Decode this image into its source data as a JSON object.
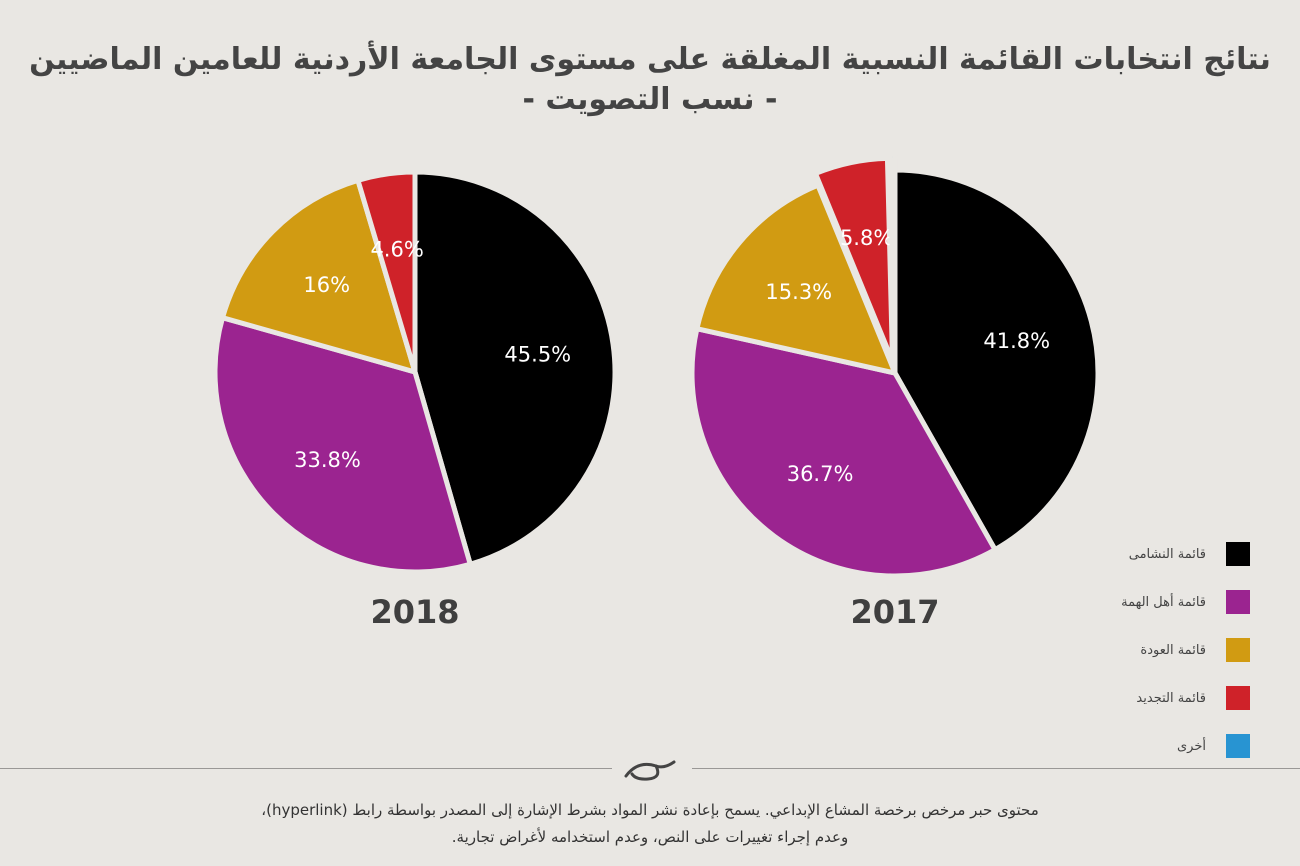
{
  "title": {
    "line1": "نتائج انتخابات القائمة النسبية المغلقة على مستوى الجامعة الأردنية للعامين الماضيين",
    "line2": "- نسب التصويت -"
  },
  "chart_data": [
    {
      "type": "pie",
      "title": "2018",
      "categories": [
        "قائمة النشامى",
        "قائمة أهل الهمة",
        "قائمة العودة",
        "قائمة التجديد"
      ],
      "values": [
        45.5,
        33.8,
        16,
        4.6
      ],
      "labels": [
        "45.5%",
        "33.8%",
        "16%",
        "4.6%"
      ],
      "colors": [
        "#000000",
        "#9b2490",
        "#d19b12",
        "#cf2229"
      ]
    },
    {
      "type": "pie",
      "title": "2017",
      "categories": [
        "قائمة النشامى",
        "قائمة أهل الهمة",
        "قائمة العودة",
        "قائمة التجديد",
        "أخرى"
      ],
      "values": [
        41.8,
        36.7,
        15.3,
        5.8,
        0.4
      ],
      "labels": [
        "41.8%",
        "36.7%",
        "15.3%",
        "5.8%",
        ""
      ],
      "colors": [
        "#000000",
        "#9b2490",
        "#d19b12",
        "#cf2229",
        "#2894d2"
      ]
    }
  ],
  "legend": [
    {
      "label": "قائمة النشامى",
      "color": "#000000"
    },
    {
      "label": "قائمة أهل الهمة",
      "color": "#9b2490"
    },
    {
      "label": "قائمة العودة",
      "color": "#d19b12"
    },
    {
      "label": "قائمة التجديد",
      "color": "#cf2229"
    },
    {
      "label": "أخرى",
      "color": "#2894d2"
    }
  ],
  "footer": {
    "line1": "محتوى حبر مرخص برخصة المشاع الإبداعي. يسمح بإعادة نشر المواد بشرط الإشارة إلى المصدر بواسطة رابط (hyperlink)،",
    "line2": "وعدم إجراء تغييرات على النص، وعدم استخدامه لأغراض تجارية."
  },
  "logo": {
    "icon": "hibr-logo-icon"
  }
}
